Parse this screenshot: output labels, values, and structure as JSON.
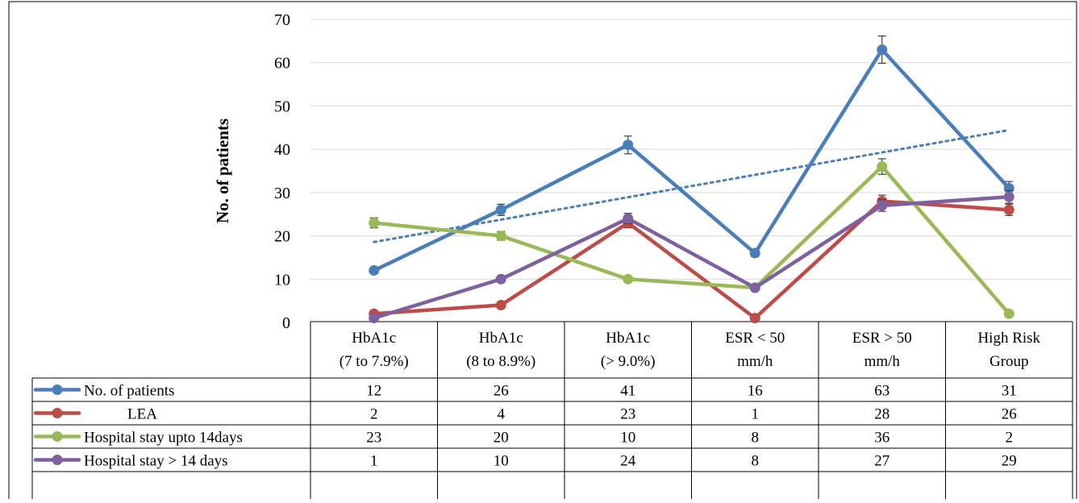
{
  "chart_data": {
    "type": "line",
    "ylabel": "No. of patients",
    "ylim": [
      0,
      70
    ],
    "yticks": [
      0,
      10,
      20,
      30,
      40,
      50,
      60,
      70
    ],
    "grid": true,
    "legend": "table-below",
    "categories": [
      [
        "HbA1c",
        "(7 to 7.9%)"
      ],
      [
        "HbA1c",
        "(8 to 8.9%)"
      ],
      [
        "HbA1c",
        "(> 9.0%)"
      ],
      [
        "ESR < 50",
        "mm/h"
      ],
      [
        "ESR > 50",
        "mm/h"
      ],
      [
        "High Risk",
        "Group"
      ]
    ],
    "series": [
      {
        "name": "No. of patients",
        "color": "#4a7ebb",
        "values": [
          12,
          26,
          41,
          16,
          63,
          31
        ],
        "error": [
          0.6,
          1.3,
          2.05,
          0.8,
          3.15,
          1.55
        ]
      },
      {
        "name": "LEA",
        "color": "#be4b48",
        "values": [
          2,
          4,
          23,
          1,
          28,
          26
        ],
        "error": [
          0.1,
          0.2,
          1.15,
          0.05,
          1.4,
          1.3
        ]
      },
      {
        "name": "Hospital stay upto 14days",
        "color": "#98b954",
        "values": [
          23,
          20,
          10,
          8,
          36,
          2
        ],
        "error": [
          1.15,
          1.0,
          0.5,
          0.4,
          1.8,
          0.1
        ]
      },
      {
        "name": "Hospital stay > 14 days",
        "color": "#7d60a0",
        "values": [
          1,
          10,
          24,
          8,
          27,
          29
        ],
        "error": [
          0.05,
          0.5,
          1.2,
          0.4,
          1.35,
          1.45
        ]
      }
    ],
    "trendline": {
      "series": "No. of patients",
      "type": "linear",
      "color": "#4a7ebb",
      "style": "dotted"
    }
  }
}
